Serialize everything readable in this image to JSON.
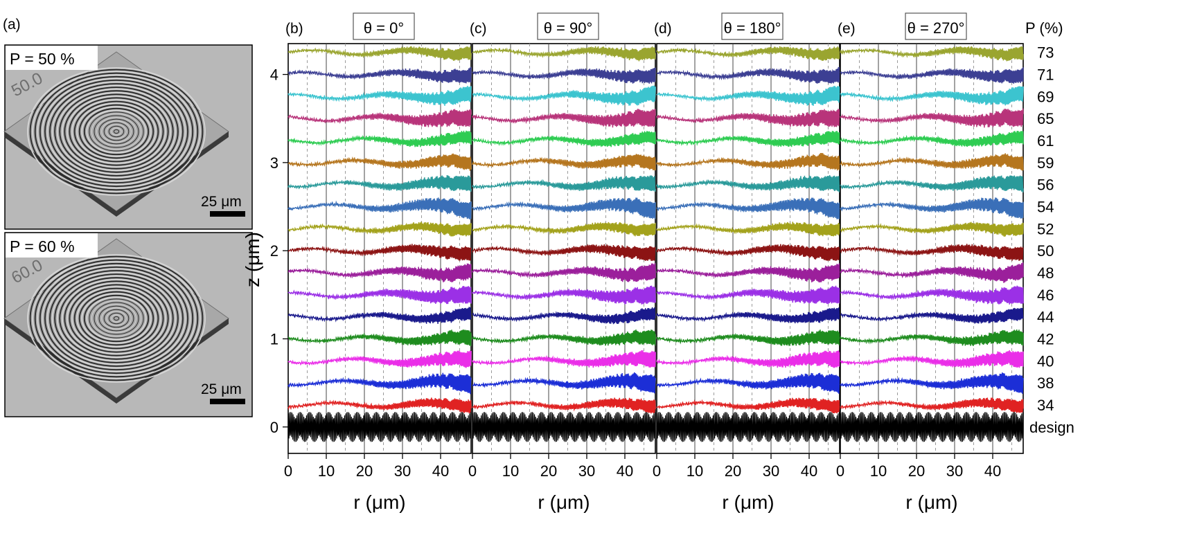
{
  "figure": {
    "panel_a": {
      "letter": "(a)",
      "images": [
        {
          "label": "P = 50 %",
          "P": 50,
          "engraving": "50.0",
          "scale_bar": "25 μm"
        },
        {
          "label": "P = 60 %",
          "P": 60,
          "engraving": "60.0",
          "scale_bar": "25 μm"
        }
      ]
    },
    "p_axis_title": "P (%)",
    "p_labels": [
      "73",
      "71",
      "69",
      "65",
      "61",
      "59",
      "56",
      "54",
      "52",
      "50",
      "48",
      "46",
      "44",
      "42",
      "40",
      "38",
      "34",
      "design"
    ]
  },
  "chart_data": {
    "type": "line",
    "shared_axes": {
      "xlabel": "r (μm)",
      "ylabel": "z (μm)",
      "xlim": [
        0,
        48
      ],
      "ylim": [
        -0.3,
        4.35
      ],
      "xticks": [
        0,
        10,
        20,
        30,
        40
      ],
      "yticks": [
        0,
        1,
        2,
        3,
        4
      ],
      "grid": {
        "x_major": [
          0,
          10,
          20,
          30,
          40
        ],
        "x_minor_dashed": [
          5,
          15,
          25,
          35,
          45
        ],
        "y": "none"
      },
      "legend": "right-side labels"
    },
    "panels": [
      {
        "letter": "(b)",
        "title": "θ = 0°",
        "theta": 0
      },
      {
        "letter": "(c)",
        "title": "θ = 90°",
        "theta": 90
      },
      {
        "letter": "(d)",
        "title": "θ = 180°",
        "theta": 180
      },
      {
        "letter": "(e)",
        "title": "θ = 270°",
        "theta": 270
      }
    ],
    "series": [
      {
        "name": "73",
        "offset": 4.25,
        "color": "#9aa530"
      },
      {
        "name": "71",
        "offset": 4.0,
        "color": "#3c3f93"
      },
      {
        "name": "69",
        "offset": 3.75,
        "color": "#3cc4cf"
      },
      {
        "name": "65",
        "offset": 3.5,
        "color": "#b8347a"
      },
      {
        "name": "61",
        "offset": 3.25,
        "color": "#2ecc52"
      },
      {
        "name": "59",
        "offset": 3.0,
        "color": "#b5761f"
      },
      {
        "name": "56",
        "offset": 2.75,
        "color": "#2a9a9a"
      },
      {
        "name": "54",
        "offset": 2.5,
        "color": "#3a6fb8"
      },
      {
        "name": "52",
        "offset": 2.25,
        "color": "#a3a21c"
      },
      {
        "name": "50",
        "offset": 2.0,
        "color": "#8c1414"
      },
      {
        "name": "48",
        "offset": 1.75,
        "color": "#9b1f9b"
      },
      {
        "name": "46",
        "offset": 1.5,
        "color": "#9b30e6"
      },
      {
        "name": "44",
        "offset": 1.25,
        "color": "#1a1a8c"
      },
      {
        "name": "42",
        "offset": 1.0,
        "color": "#1e8c1e"
      },
      {
        "name": "40",
        "offset": 0.75,
        "color": "#ea2ee8"
      },
      {
        "name": "38",
        "offset": 0.5,
        "color": "#1c2ed6"
      },
      {
        "name": "34",
        "offset": 0.25,
        "color": "#e02222"
      },
      {
        "name": "design",
        "offset": 0.0,
        "color": "#000000",
        "amplitude": 0.17
      }
    ]
  }
}
